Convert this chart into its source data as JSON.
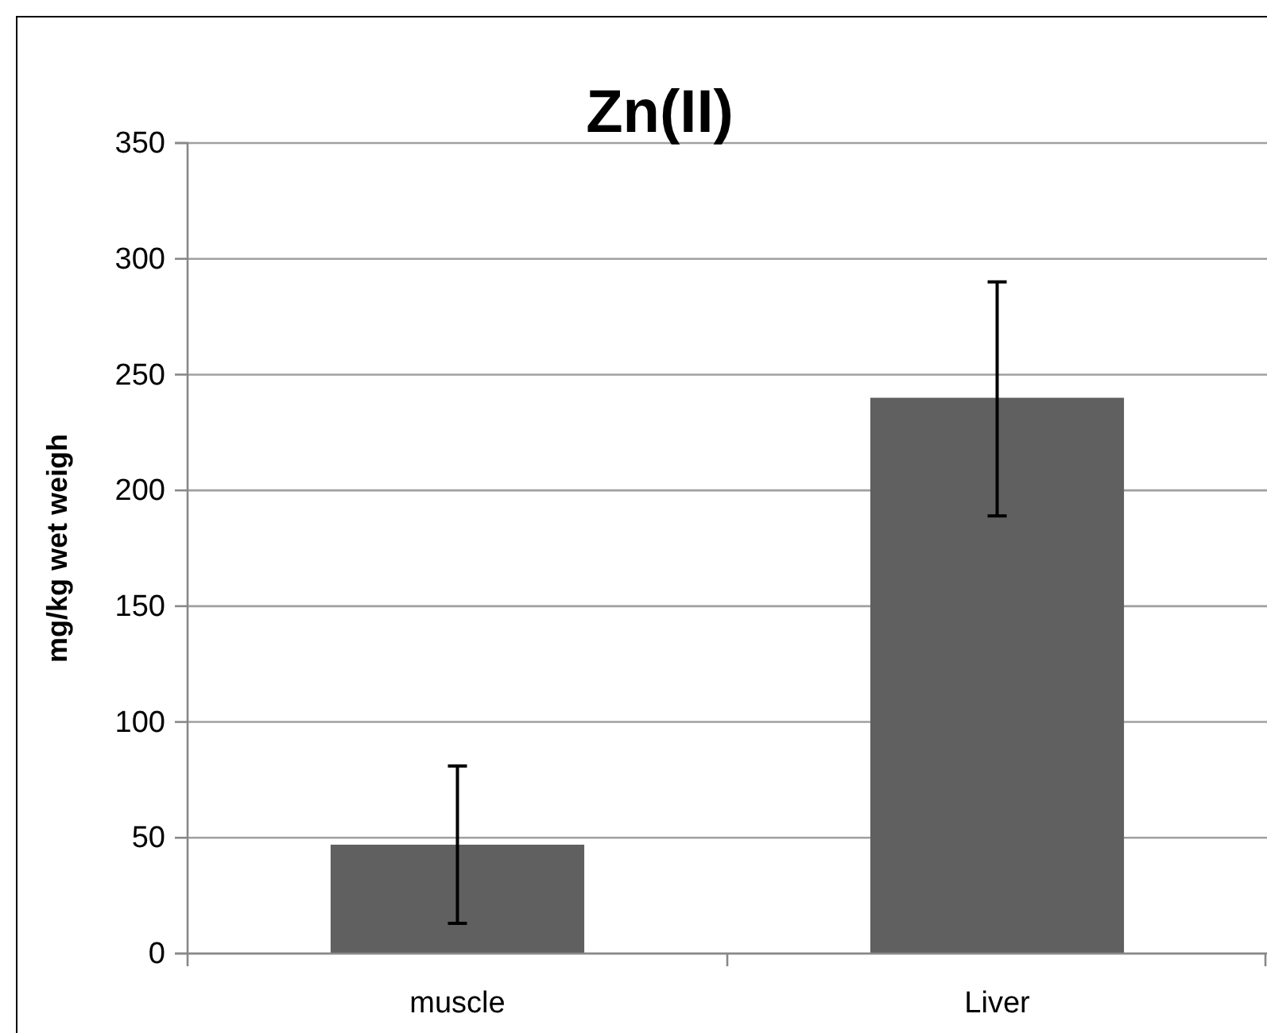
{
  "chart_data": {
    "type": "bar",
    "title": "Zn(II)",
    "ylabel": "mg/kg wet weigh",
    "categories": [
      "muscle",
      "Liver"
    ],
    "values": [
      47,
      240
    ],
    "errors": [
      [
        13,
        81
      ],
      [
        189,
        290
      ]
    ],
    "color": "#606060",
    "ylim": [
      0,
      350
    ],
    "yticks": [
      0,
      50,
      100,
      150,
      200,
      250,
      300,
      350
    ],
    "grid": "y"
  }
}
